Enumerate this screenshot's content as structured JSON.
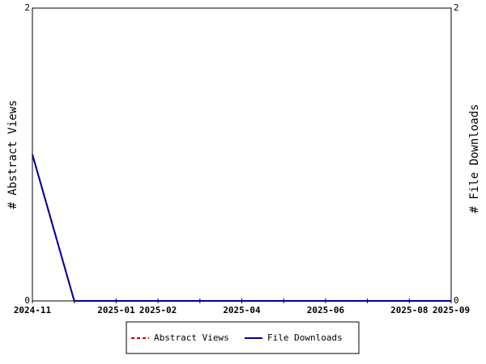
{
  "chart_data": {
    "type": "line",
    "categories": [
      "2024-11",
      null,
      "2025-01",
      "2025-02",
      null,
      "2025-04",
      null,
      "2025-06",
      null,
      "2025-08",
      "2025-09"
    ],
    "series": [
      {
        "name": "Abstract Views",
        "color": "#cc0000",
        "dash": true,
        "values": [
          1,
          0,
          0,
          0,
          0,
          0,
          0,
          0,
          0,
          0,
          0
        ]
      },
      {
        "name": "File Downloads",
        "color": "#000099",
        "axis": "y2",
        "values": [
          1,
          0,
          0,
          0,
          0,
          0,
          0,
          0,
          0,
          0,
          0
        ]
      }
    ],
    "y_label": "# Abstract Views",
    "y2_label": "# File Downloads",
    "ylim": [
      0,
      2
    ],
    "yticks": [
      0,
      2
    ],
    "y2lim": [
      0,
      2
    ],
    "y2ticks": [
      0,
      2
    ]
  }
}
